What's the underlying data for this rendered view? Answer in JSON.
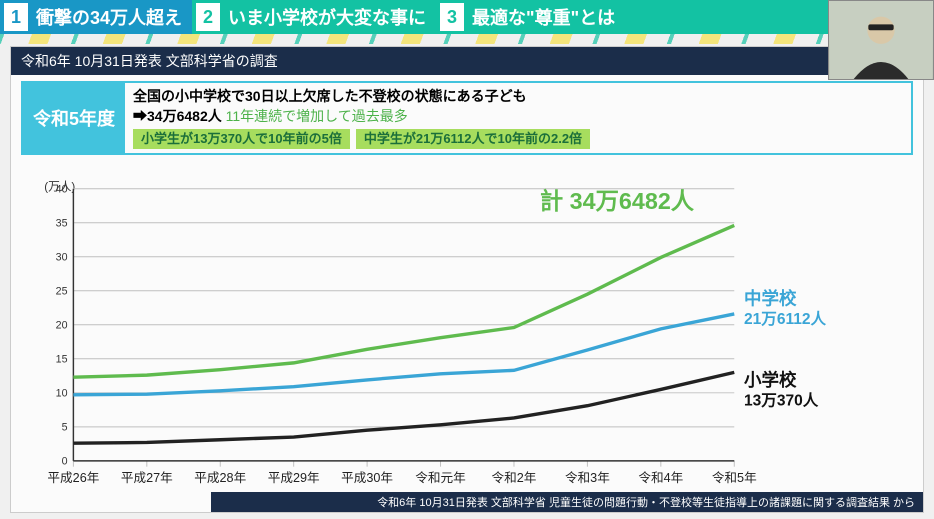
{
  "tabs": [
    {
      "num": "1",
      "label": "衝撃の34万人超え",
      "active": true
    },
    {
      "num": "2",
      "label": "いま小学校が大変な事に",
      "active": false
    },
    {
      "num": "3",
      "label": "最適な\"尊重\"とは",
      "active": false
    }
  ],
  "header": "令和6年 10月31日発表 文部科学省の調査",
  "info": {
    "year": "令和5年度",
    "line1": "全国の小中学校で30日以上欠席した不登校の状態にある子ども",
    "line2_lead": "➡34万6482人",
    "line2_tail": "11年連続で増加して過去最多",
    "pill1": "小学生が13万370人で10年前の5倍",
    "pill2": "中学生が21万6112人で10年前の2.2倍"
  },
  "chart": {
    "y_unit": "(万人)",
    "y_ticks": [
      0,
      5,
      10,
      15,
      20,
      25,
      30,
      35,
      40
    ],
    "x_labels": [
      "平成26年",
      "平成27年",
      "平成28年",
      "平成29年",
      "平成30年",
      "令和元年",
      "令和2年",
      "令和3年",
      "令和4年",
      "令和5年"
    ],
    "series": {
      "total": {
        "color": "#5fbb4e",
        "values": [
          12.3,
          12.6,
          13.4,
          14.4,
          16.4,
          18.1,
          19.6,
          24.5,
          29.9,
          34.6
        ],
        "label": "計 34万6482人"
      },
      "middle": {
        "color": "#3aa5d6",
        "values": [
          9.7,
          9.8,
          10.3,
          10.9,
          11.9,
          12.8,
          13.3,
          16.3,
          19.4,
          21.6
        ],
        "title": "中学校",
        "label": "21万6112人"
      },
      "elementary": {
        "color": "#222222",
        "values": [
          2.6,
          2.7,
          3.1,
          3.5,
          4.5,
          5.3,
          6.3,
          8.1,
          10.5,
          13.0
        ],
        "title": "小学校",
        "label": "13万370人"
      }
    },
    "plot": {
      "ymin": 0,
      "ymax": 40,
      "grid_color": "#bfbfbf",
      "bg": "#fbfbfb",
      "line_width": 3.5
    }
  },
  "footer": "令和6年 10月31日発表 文部科学省 児童生徒の問題行動・不登校等生徒指導上の諸課題に関する調査結果 から"
}
